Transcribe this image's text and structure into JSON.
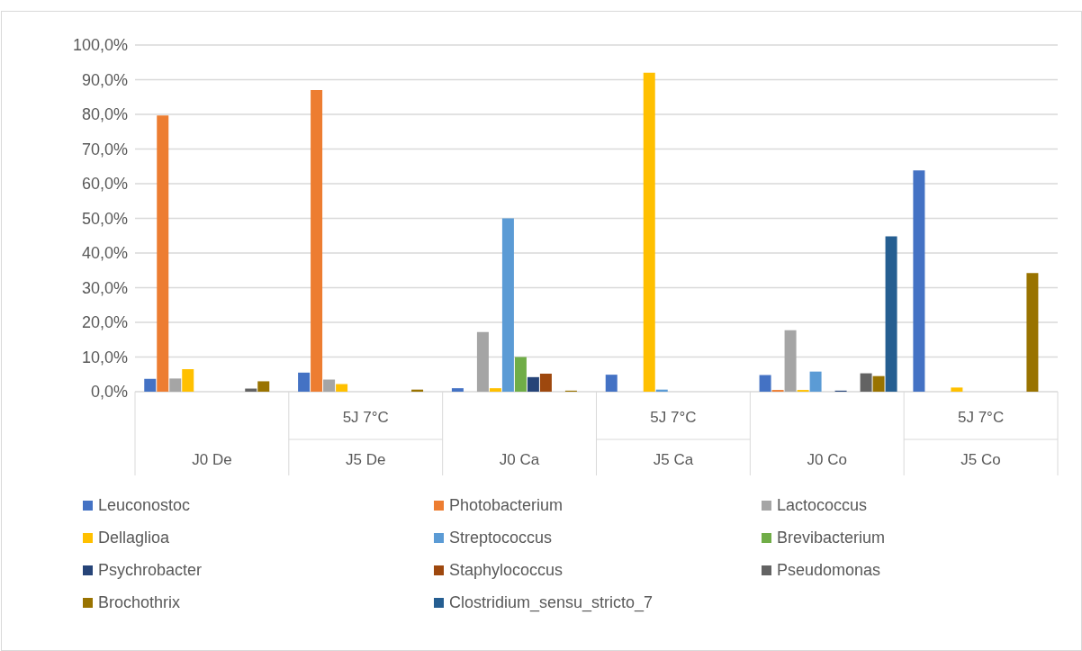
{
  "chart_data": {
    "type": "bar",
    "categories": [
      "J0 De",
      "J5 De",
      "J0 Ca",
      "J5 Ca",
      "J0 Co",
      "J5 Co"
    ],
    "annotations": [
      "5J 7°C",
      "5J 7°C",
      "5J 7°C"
    ],
    "ylim": [
      0,
      100
    ],
    "yticks": [
      {
        "value": 0,
        "label": "0,0%"
      },
      {
        "value": 10,
        "label": "10,0%"
      },
      {
        "value": 20,
        "label": "20,0%"
      },
      {
        "value": 30,
        "label": "30,0%"
      },
      {
        "value": 40,
        "label": "40,0%"
      },
      {
        "value": 50,
        "label": "50,0%"
      },
      {
        "value": 60,
        "label": "60,0%"
      },
      {
        "value": 70,
        "label": "70,0%"
      },
      {
        "value": 80,
        "label": "80,0%"
      },
      {
        "value": 90,
        "label": "90,0%"
      },
      {
        "value": 100,
        "label": "100,0%"
      }
    ],
    "grid": "y",
    "legend": "bottom",
    "series": [
      {
        "name": "Leuconostoc",
        "color": "#4472c4",
        "values": [
          3.7,
          5.5,
          1.0,
          4.9,
          4.8,
          63.8
        ]
      },
      {
        "name": "Photobacterium",
        "color": "#ed7d31",
        "values": [
          79.7,
          87,
          0,
          0,
          0.5,
          0
        ]
      },
      {
        "name": "Lactococcus",
        "color": "#a5a5a5",
        "values": [
          3.8,
          3.5,
          17.2,
          0,
          17.7,
          0
        ]
      },
      {
        "name": "Dellaglioa",
        "color": "#ffc000",
        "values": [
          6.5,
          2.2,
          1.0,
          92,
          0.5,
          1.2
        ]
      },
      {
        "name": "Streptococcus",
        "color": "#5b9bd5",
        "values": [
          0,
          0,
          50,
          0.6,
          5.8,
          0
        ]
      },
      {
        "name": "Brevibacterium",
        "color": "#70ad47",
        "values": [
          0,
          0,
          10,
          0,
          0,
          0
        ]
      },
      {
        "name": "Psychrobacter",
        "color": "#264478",
        "values": [
          0,
          0,
          4.2,
          0,
          0.3,
          0
        ]
      },
      {
        "name": "Staphylococcus",
        "color": "#9e480e",
        "values": [
          0,
          0,
          5.2,
          0,
          0,
          0
        ]
      },
      {
        "name": "Pseudomonas",
        "color": "#636363",
        "values": [
          0.9,
          0,
          0,
          0,
          5.3,
          0
        ]
      },
      {
        "name": "Brochothrix",
        "color": "#997300",
        "values": [
          3.0,
          0.6,
          0.3,
          0,
          4.5,
          34.2
        ]
      },
      {
        "name": "Clostridium_sensu_stricto_7",
        "color": "#255e91",
        "values": [
          0,
          0,
          0,
          0,
          44.8,
          0
        ]
      }
    ]
  }
}
